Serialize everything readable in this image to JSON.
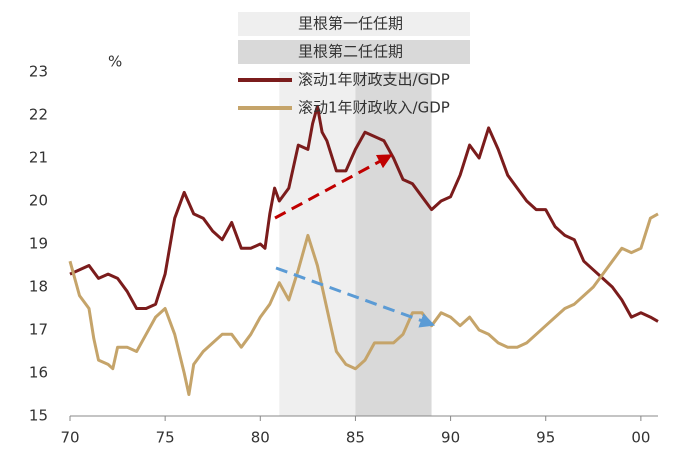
{
  "chart_data": {
    "type": "line",
    "y_label": "%",
    "xlim": [
      1970,
      2000.9
    ],
    "xticks": [
      {
        "value": 1970,
        "label": "70"
      },
      {
        "value": 1975,
        "label": "75"
      },
      {
        "value": 1980,
        "label": "80"
      },
      {
        "value": 1985,
        "label": "85"
      },
      {
        "value": 1990,
        "label": "90"
      },
      {
        "value": 1995,
        "label": "95"
      },
      {
        "value": 2000,
        "label": "00"
      }
    ],
    "ylim": [
      15,
      23
    ],
    "yticks": [
      15,
      16,
      17,
      18,
      19,
      20,
      21,
      22,
      23
    ],
    "grid": false,
    "spans": [
      {
        "name": "里根第一任任期",
        "range": [
          1981,
          1985
        ],
        "color": "#efefef"
      },
      {
        "name": "里根第二任任期",
        "range": [
          1985,
          1989
        ],
        "color": "#d9d9d9"
      }
    ],
    "series": [
      {
        "name": "滚动1年财政支出/GDP",
        "color": "#7b1c1c",
        "x": [
          1970,
          1971,
          1971.5,
          1972,
          1972.5,
          1973,
          1973.5,
          1974,
          1974.5,
          1975,
          1975.5,
          1976,
          1976.5,
          1977,
          1977.5,
          1978,
          1978.5,
          1979,
          1979.5,
          1980,
          1980.25,
          1980.5,
          1980.75,
          1981,
          1981.5,
          1982,
          1982.5,
          1982.75,
          1983,
          1983.25,
          1983.5,
          1984,
          1984.5,
          1985,
          1985.5,
          1986,
          1986.5,
          1987,
          1987.5,
          1988,
          1988.5,
          1989,
          1989.5,
          1990,
          1990.5,
          1991,
          1991.5,
          1992,
          1992.5,
          1993,
          1993.5,
          1994,
          1994.5,
          1995,
          1995.5,
          1996,
          1996.5,
          1997,
          1997.5,
          1998,
          1998.5,
          1999,
          1999.5,
          2000,
          2000.5,
          2000.9
        ],
        "values": [
          18.3,
          18.5,
          18.2,
          18.3,
          18.2,
          17.9,
          17.5,
          17.5,
          17.6,
          18.3,
          19.6,
          20.2,
          19.7,
          19.6,
          19.3,
          19.1,
          19.5,
          18.9,
          18.9,
          19.0,
          18.9,
          19.7,
          20.3,
          20.0,
          20.3,
          21.3,
          21.2,
          21.8,
          22.2,
          21.6,
          21.4,
          20.7,
          20.7,
          21.2,
          21.6,
          21.5,
          21.4,
          21.0,
          20.5,
          20.4,
          20.1,
          19.8,
          20.0,
          20.1,
          20.6,
          21.3,
          21.0,
          21.7,
          21.2,
          20.6,
          20.3,
          20.0,
          19.8,
          19.8,
          19.4,
          19.2,
          19.1,
          18.6,
          18.4,
          18.2,
          18.0,
          17.7,
          17.3,
          17.4,
          17.3,
          17.2
        ]
      },
      {
        "name": "滚动1年财政收入/GDP",
        "color": "#c5a46a",
        "x": [
          1970,
          1970.5,
          1971,
          1971.25,
          1971.5,
          1972,
          1972.25,
          1972.5,
          1973,
          1973.5,
          1974,
          1974.5,
          1975,
          1975.5,
          1976,
          1976.25,
          1976.5,
          1977,
          1977.5,
          1978,
          1978.5,
          1979,
          1979.5,
          1980,
          1980.5,
          1981,
          1981.5,
          1982,
          1982.5,
          1983,
          1983.5,
          1984,
          1984.5,
          1985,
          1985.5,
          1986,
          1986.5,
          1987,
          1987.5,
          1988,
          1988.5,
          1989,
          1989.5,
          1990,
          1990.5,
          1991,
          1991.5,
          1992,
          1992.5,
          1993,
          1993.5,
          1994,
          1994.5,
          1995,
          1995.5,
          1996,
          1996.5,
          1997,
          1997.5,
          1998,
          1998.5,
          1999,
          1999.5,
          2000,
          2000.5,
          2000.9
        ],
        "values": [
          18.6,
          17.8,
          17.5,
          16.8,
          16.3,
          16.2,
          16.1,
          16.6,
          16.6,
          16.5,
          16.9,
          17.3,
          17.5,
          16.9,
          16.0,
          15.5,
          16.2,
          16.5,
          16.7,
          16.9,
          16.9,
          16.6,
          16.9,
          17.3,
          17.6,
          18.1,
          17.7,
          18.4,
          19.2,
          18.5,
          17.5,
          16.5,
          16.2,
          16.1,
          16.3,
          16.7,
          16.7,
          16.7,
          16.9,
          17.4,
          17.4,
          17.1,
          17.4,
          17.3,
          17.1,
          17.3,
          17.0,
          16.9,
          16.7,
          16.6,
          16.6,
          16.7,
          16.9,
          17.1,
          17.3,
          17.5,
          17.6,
          17.8,
          18.0,
          18.3,
          18.6,
          18.9,
          18.8,
          18.9,
          19.6,
          19.7
        ]
      }
    ]
  }
}
